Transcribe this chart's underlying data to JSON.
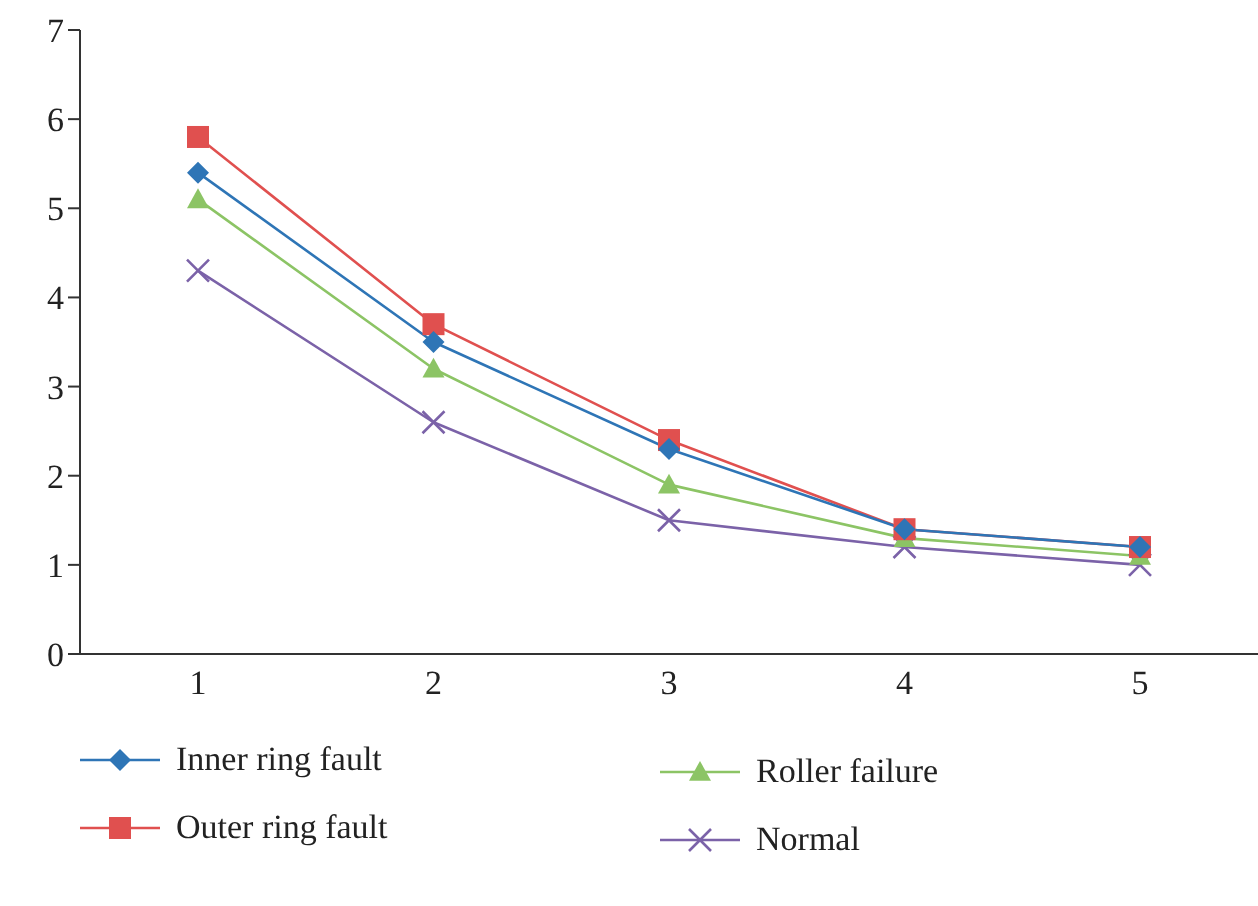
{
  "chart_data": {
    "type": "line",
    "categories": [
      "1",
      "2",
      "3",
      "4",
      "5"
    ],
    "ylim": [
      0,
      7
    ],
    "yticks": [
      0,
      1,
      2,
      3,
      4,
      5,
      6,
      7
    ],
    "grid": false,
    "legend": "bottom",
    "series": [
      {
        "name": "Inner ring fault",
        "color": "#2e75b6",
        "marker": "diamond",
        "values": [
          5.4,
          3.5,
          2.3,
          1.4,
          1.2
        ]
      },
      {
        "name": "Outer ring fault",
        "color": "#e0504f",
        "marker": "square",
        "values": [
          5.8,
          3.7,
          2.4,
          1.4,
          1.2
        ]
      },
      {
        "name": "Roller failure",
        "color": "#8cc465",
        "marker": "triangle",
        "values": [
          5.1,
          3.2,
          1.9,
          1.3,
          1.1
        ]
      },
      {
        "name": "Normal",
        "color": "#7b62a8",
        "marker": "cross",
        "values": [
          4.3,
          2.6,
          1.5,
          1.2,
          1.0
        ]
      }
    ]
  }
}
